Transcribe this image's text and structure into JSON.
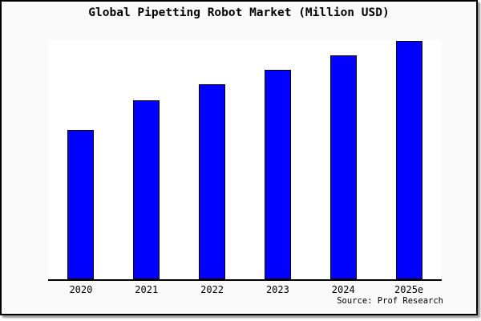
{
  "window": {
    "background_color": "#fafafa",
    "plot_background_color": "#ffffff",
    "border_color": "#000000"
  },
  "title": "Global Pipetting Robot Market (Million USD)",
  "source": "Source: Prof Research",
  "chart_data": {
    "type": "bar",
    "title": "Global Pipetting Robot Market (Million USD)",
    "categories": [
      "2020",
      "2021",
      "2022",
      "2023",
      "2024",
      "2025e"
    ],
    "values": [
      62.6,
      75.1,
      81.8,
      87.9,
      93.9,
      100
    ],
    "note": "No y-axis ticks or gridlines shown; values are relative bar heights normalized to 2025e = 100",
    "xlabel": "",
    "ylabel": "",
    "ylim": [
      0,
      100
    ],
    "grid": false,
    "legend": false,
    "bar_color": "#0000ff",
    "bar_border_color": "#000000",
    "source": "Source: Prof Research"
  }
}
